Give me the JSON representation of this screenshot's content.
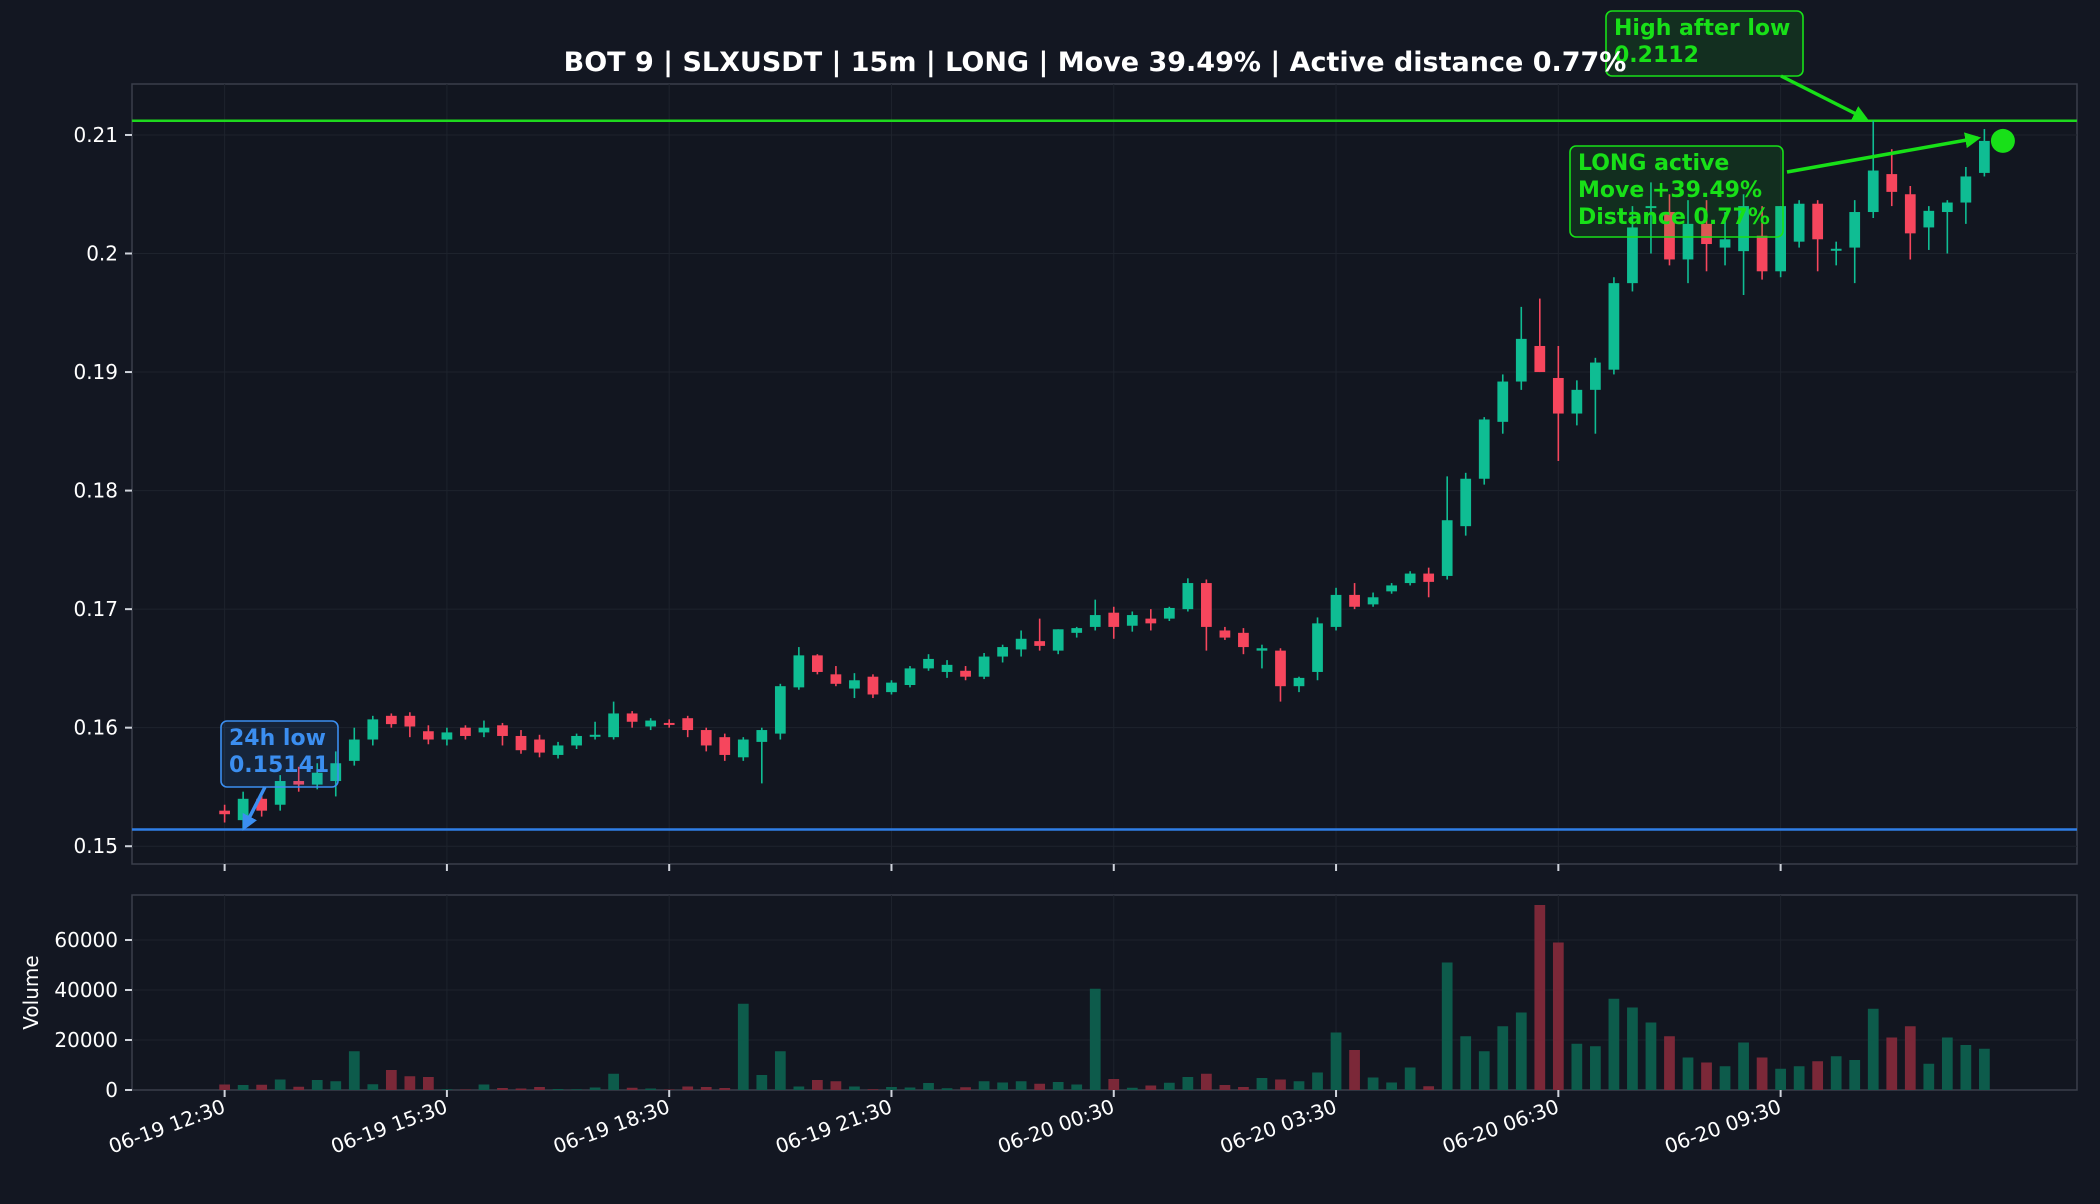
{
  "chart_data": {
    "type": "candlestick",
    "title": "BOT 9 | SLXUSDT | 15m | LONG | Move 39.49% | Active distance 0.77%",
    "symbol": "SLXUSDT",
    "timeframe": "15m",
    "price_axis": {
      "ylim": [
        0.1485,
        0.2143
      ],
      "ticks": [
        0.15,
        0.16,
        0.17,
        0.18,
        0.19,
        0.2,
        0.21
      ],
      "tick_labels": [
        "0.15",
        "0.16",
        "0.17",
        "0.18",
        "0.19",
        "0.2",
        "0.21"
      ]
    },
    "volume_axis": {
      "label": "Volume",
      "ylim": [
        0,
        78000
      ],
      "ticks": [
        0,
        20000,
        40000,
        60000
      ],
      "tick_labels": [
        "0",
        "20000",
        "40000",
        "60000"
      ]
    },
    "time_axis": {
      "first_candle": "06-19 12:30",
      "xlim_candles": [
        -5,
        100
      ],
      "tick_candle_index": [
        0,
        12,
        24,
        36,
        48,
        60,
        72,
        84
      ],
      "tick_labels": [
        "06-19 12:30",
        "06-19 15:30",
        "06-19 18:30",
        "06-19 21:30",
        "06-20 00:30",
        "06-20 03:30",
        "06-20 06:30",
        "06-20 09:30"
      ]
    },
    "grid": true,
    "colors": {
      "background": "#131722",
      "up": "#0fbd93",
      "down": "#f6465d",
      "volume_up": "#0d5b4b",
      "volume_down": "#7b2838",
      "low_line": "#2f7ee6",
      "high_line": "#1ed81e",
      "annotation_green": "#18e018",
      "annotation_blue": "#3b8ef0",
      "text": "#ffffff",
      "axis": "#3a3f4b",
      "grid": "#1e232d"
    },
    "ohlc_columns": [
      "open",
      "high",
      "low",
      "close",
      "volume"
    ],
    "candles": [
      [
        0.153,
        0.1535,
        0.152,
        0.1527,
        2200
      ],
      [
        0.1522,
        0.1546,
        0.1514,
        0.154,
        2000
      ],
      [
        0.154,
        0.1545,
        0.1525,
        0.153,
        2100
      ],
      [
        0.1535,
        0.156,
        0.153,
        0.1555,
        4200
      ],
      [
        0.1555,
        0.1567,
        0.1546,
        0.1552,
        1300
      ],
      [
        0.1552,
        0.157,
        0.1548,
        0.1562,
        4000
      ],
      [
        0.1555,
        0.158,
        0.1542,
        0.157,
        3500
      ],
      [
        0.1572,
        0.16,
        0.1568,
        0.159,
        15500
      ],
      [
        0.159,
        0.161,
        0.1585,
        0.1607,
        2300
      ],
      [
        0.161,
        0.1612,
        0.16,
        0.1603,
        8000
      ],
      [
        0.161,
        0.1613,
        0.1592,
        0.1601,
        5500
      ],
      [
        0.1597,
        0.1602,
        0.1586,
        0.159,
        5200
      ],
      [
        0.159,
        0.16,
        0.1585,
        0.1596,
        300
      ],
      [
        0.16,
        0.1602,
        0.159,
        0.1593,
        200
      ],
      [
        0.1596,
        0.1606,
        0.1592,
        0.16,
        2200
      ],
      [
        0.1602,
        0.1604,
        0.1585,
        0.1593,
        800
      ],
      [
        0.1593,
        0.1598,
        0.1578,
        0.1581,
        600
      ],
      [
        0.159,
        0.1594,
        0.1575,
        0.1579,
        1200
      ],
      [
        0.1577,
        0.1588,
        0.1574,
        0.1585,
        400
      ],
      [
        0.1585,
        0.1595,
        0.1582,
        0.1593,
        300
      ],
      [
        0.1593,
        0.1605,
        0.159,
        0.1594,
        1000
      ],
      [
        0.1592,
        0.1622,
        0.159,
        0.1612,
        6500
      ],
      [
        0.1612,
        0.1614,
        0.16,
        0.1605,
        900
      ],
      [
        0.1601,
        0.1608,
        0.1598,
        0.1606,
        600
      ],
      [
        0.1604,
        0.1607,
        0.16,
        0.1603,
        200
      ],
      [
        0.1608,
        0.161,
        0.1592,
        0.1598,
        1400
      ],
      [
        0.1598,
        0.16,
        0.158,
        0.1585,
        1200
      ],
      [
        0.1592,
        0.1595,
        0.1572,
        0.1577,
        800
      ],
      [
        0.1575,
        0.1592,
        0.1572,
        0.159,
        34500
      ],
      [
        0.1588,
        0.16,
        0.1553,
        0.1598,
        6000
      ],
      [
        0.1595,
        0.1637,
        0.159,
        0.1635,
        15500
      ],
      [
        0.1634,
        0.1668,
        0.1632,
        0.1661,
        1400
      ],
      [
        0.1661,
        0.1662,
        0.1645,
        0.1647,
        4000
      ],
      [
        0.1645,
        0.1652,
        0.1635,
        0.1637,
        3500
      ],
      [
        0.1633,
        0.1646,
        0.1625,
        0.164,
        1400
      ],
      [
        0.1643,
        0.1645,
        0.1625,
        0.1628,
        300
      ],
      [
        0.163,
        0.164,
        0.1628,
        0.1638,
        1200
      ],
      [
        0.1636,
        0.1652,
        0.1634,
        0.165,
        1000
      ],
      [
        0.165,
        0.1662,
        0.1648,
        0.1658,
        2800
      ],
      [
        0.1647,
        0.1657,
        0.1642,
        0.1653,
        700
      ],
      [
        0.1648,
        0.1652,
        0.164,
        0.1643,
        1100
      ],
      [
        0.1643,
        0.1663,
        0.1641,
        0.166,
        3500
      ],
      [
        0.166,
        0.167,
        0.1655,
        0.1668,
        3000
      ],
      [
        0.1666,
        0.1682,
        0.166,
        0.1675,
        3500
      ],
      [
        0.1673,
        0.1692,
        0.1665,
        0.1669,
        2500
      ],
      [
        0.1665,
        0.1683,
        0.1662,
        0.1683,
        3200
      ],
      [
        0.168,
        0.1685,
        0.1676,
        0.1684,
        2200
      ],
      [
        0.1685,
        0.1708,
        0.1682,
        0.1695,
        40500
      ],
      [
        0.1697,
        0.1702,
        0.1675,
        0.1685,
        4400
      ],
      [
        0.1686,
        0.1698,
        0.1681,
        0.1695,
        900
      ],
      [
        0.1692,
        0.17,
        0.1682,
        0.1688,
        1800
      ],
      [
        0.1692,
        0.1702,
        0.169,
        0.1701,
        2900
      ],
      [
        0.17,
        0.1726,
        0.1698,
        0.1722,
        5200
      ],
      [
        0.1722,
        0.1725,
        0.1665,
        0.1685,
        6500
      ],
      [
        0.1682,
        0.1685,
        0.1674,
        0.1676,
        2000
      ],
      [
        0.168,
        0.1684,
        0.1662,
        0.1668,
        1200
      ],
      [
        0.1665,
        0.167,
        0.165,
        0.1667,
        4800
      ],
      [
        0.1665,
        0.1667,
        0.1622,
        0.1635,
        4200
      ],
      [
        0.1635,
        0.1643,
        0.163,
        0.1642,
        3500
      ],
      [
        0.1647,
        0.1693,
        0.164,
        0.1688,
        7000
      ],
      [
        0.1685,
        0.1718,
        0.1682,
        0.1712,
        23000
      ],
      [
        0.1712,
        0.1722,
        0.17,
        0.1702,
        16000
      ],
      [
        0.1704,
        0.1714,
        0.1702,
        0.171,
        5000
      ],
      [
        0.1715,
        0.1722,
        0.1713,
        0.172,
        3000
      ],
      [
        0.1722,
        0.1732,
        0.172,
        0.173,
        9000
      ],
      [
        0.173,
        0.1735,
        0.171,
        0.1723,
        1500
      ],
      [
        0.1728,
        0.1812,
        0.1725,
        0.1775,
        51000
      ],
      [
        0.177,
        0.1815,
        0.1762,
        0.181,
        21500
      ],
      [
        0.181,
        0.1862,
        0.1805,
        0.186,
        15500
      ],
      [
        0.1858,
        0.1898,
        0.1848,
        0.1892,
        25500
      ],
      [
        0.1892,
        0.1955,
        0.1885,
        0.1928,
        31000
      ],
      [
        0.1922,
        0.1962,
        0.19,
        0.19,
        74000
      ],
      [
        0.1895,
        0.1922,
        0.1825,
        0.1865,
        59000
      ],
      [
        0.1865,
        0.1893,
        0.1855,
        0.1885,
        18500
      ],
      [
        0.1885,
        0.1912,
        0.1848,
        0.1908,
        17500
      ],
      [
        0.1902,
        0.198,
        0.1898,
        0.1975,
        36500
      ],
      [
        0.1975,
        0.204,
        0.1968,
        0.2022,
        33000
      ],
      [
        0.204,
        0.206,
        0.2,
        0.204,
        27000
      ],
      [
        0.2035,
        0.205,
        0.199,
        0.1995,
        21500
      ],
      [
        0.1995,
        0.2045,
        0.1975,
        0.2025,
        13000
      ],
      [
        0.2025,
        0.2045,
        0.1985,
        0.2008,
        11000
      ],
      [
        0.2005,
        0.2035,
        0.199,
        0.2012,
        9500
      ],
      [
        0.2002,
        0.205,
        0.1965,
        0.204,
        19000
      ],
      [
        0.2015,
        0.204,
        0.1978,
        0.1985,
        13000
      ],
      [
        0.1985,
        0.204,
        0.198,
        0.204,
        8500
      ],
      [
        0.201,
        0.2045,
        0.2005,
        0.2042,
        9500
      ],
      [
        0.2042,
        0.2045,
        0.1985,
        0.2012,
        11500
      ],
      [
        0.2003,
        0.201,
        0.199,
        0.2004,
        13500
      ],
      [
        0.2005,
        0.2045,
        0.1975,
        0.2035,
        12000
      ],
      [
        0.2035,
        0.2112,
        0.203,
        0.207,
        32500
      ],
      [
        0.2067,
        0.2088,
        0.204,
        0.2052,
        21000
      ],
      [
        0.205,
        0.2057,
        0.1995,
        0.2017,
        25500
      ],
      [
        0.2022,
        0.204,
        0.2003,
        0.2036,
        10500
      ],
      [
        0.2035,
        0.2045,
        0.2,
        0.2043,
        21000
      ],
      [
        0.2043,
        0.2073,
        0.2025,
        0.2065,
        18000
      ],
      [
        0.2068,
        0.2105,
        0.2065,
        0.2095,
        16500
      ]
    ],
    "levels": [
      {
        "name": "24h low",
        "value": 0.15141,
        "color": "#2f7ee6"
      },
      {
        "name": "High after low",
        "value": 0.2112,
        "color": "#1ed81e"
      }
    ],
    "annotations": [
      {
        "id": "low",
        "lines": [
          "24h low",
          "0.15141"
        ],
        "color": "#3b8ef0",
        "target_candle": 1,
        "target_price": 0.15141,
        "placement": "above-left"
      },
      {
        "id": "high",
        "lines": [
          "High after low",
          "0.2112"
        ],
        "color": "#18e018",
        "target_candle": 90,
        "target_price": 0.2112,
        "placement": "top"
      },
      {
        "id": "active",
        "lines": [
          "LONG active",
          "Move +39.49%",
          "Distance 0.77%"
        ],
        "color": "#18e018",
        "target_candle": 96,
        "target_price": 0.2095,
        "placement": "top-right"
      }
    ],
    "active_point": {
      "candle": 96,
      "price": 0.2095
    }
  }
}
